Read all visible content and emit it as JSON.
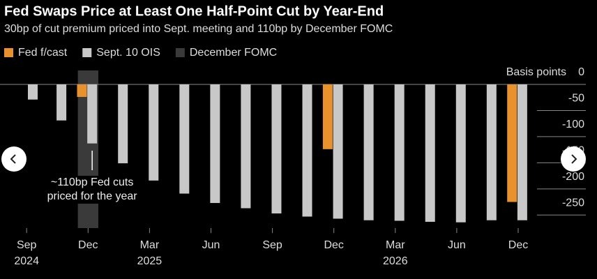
{
  "chart_data": {
    "type": "bar",
    "title": "Fed Swaps Price at Least One Half-Point Cut by Year-End",
    "subtitle": "30bp of cut premium priced into Sept. meeting and 110bp by December FOMC",
    "y_label": "Basis points",
    "series": [
      {
        "name": "Fed f/cast",
        "color": "#e8912d",
        "x": [
          2.7,
          14.7,
          23.7
        ],
        "values": [
          -24,
          -124,
          -225
        ]
      },
      {
        "name": "Sept. 10 OIS",
        "color": "#c8c8c8",
        "x": [
          0.3,
          1.7,
          3.2,
          4.7,
          6.2,
          7.7,
          9.2,
          10.7,
          12.2,
          13.7,
          15.2,
          16.7,
          18.2,
          19.7,
          21.2,
          22.7,
          24.2
        ],
        "values": [
          -29,
          -69,
          -113,
          -151,
          -184,
          -209,
          -227,
          -237,
          -247,
          -253,
          -257,
          -260,
          -261,
          -263,
          -264,
          -260,
          -260
        ]
      }
    ],
    "highlight": {
      "name": "December FOMC",
      "color": "#3a3a3a",
      "xrange": [
        2.5,
        3.5
      ]
    },
    "annotation": {
      "text": "~110bp Fed cuts priced for the year",
      "x": 3.2
    },
    "xlim": [
      -1.3,
      25.6
    ],
    "xticks": [
      {
        "value": 0,
        "label": "Sep\n2024"
      },
      {
        "value": 3,
        "label": "Dec"
      },
      {
        "value": 6,
        "label": "Mar\n2025"
      },
      {
        "value": 9,
        "label": "Jun"
      },
      {
        "value": 12,
        "label": "Sep"
      },
      {
        "value": 15,
        "label": "Dec"
      },
      {
        "value": 18,
        "label": "Mar\n2026"
      },
      {
        "value": 21,
        "label": "Jun"
      },
      {
        "value": 24,
        "label": "Dec"
      }
    ],
    "ylim": [
      -275,
      0
    ],
    "yticks": [
      0,
      -50,
      -100,
      -150,
      -200,
      -250
    ]
  }
}
